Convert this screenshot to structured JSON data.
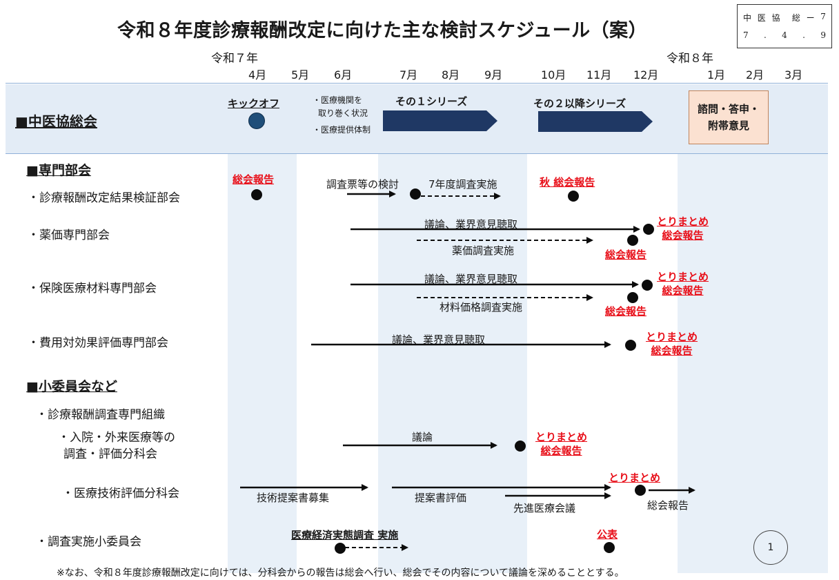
{
  "title": "令和８年度診療報酬改定に向けた主な検討スケジュール（案）",
  "doc_id": {
    "row1": [
      "中",
      "医",
      "協",
      "",
      "総",
      "ー",
      "7"
    ],
    "row2": [
      "7",
      ".",
      "4",
      ".",
      "9"
    ]
  },
  "timeline": {
    "era_start": "令和７年",
    "era_end": "令和８年",
    "months": [
      "4月",
      "5月",
      "6月",
      "7月",
      "8月",
      "9月",
      "10月",
      "11月",
      "12月",
      "1月",
      "2月",
      "3月"
    ]
  },
  "chuikyo": {
    "label": "■中医協総会",
    "kickoff": "キックオフ",
    "notes": [
      "・医療機関を",
      "取り巻く状況",
      "・医療提供体制"
    ],
    "series1": "その１シリーズ",
    "series2": "その２以降シリーズ",
    "final_box": [
      "諮問・答申・",
      "附帯意見"
    ]
  },
  "senmon": {
    "heading": "■専門部会",
    "kensho": {
      "label": "・診療報酬改定結果検証部会",
      "report1": "総会報告",
      "step1": "調査票等の検討",
      "step2": "7年度調査実施",
      "report2": "秋 総会報告"
    },
    "yakka": {
      "label": "・薬価専門部会",
      "main": "議論、業界意見聴取",
      "sub": "薬価調査実施",
      "summary": [
        "とりまとめ",
        "総会報告"
      ],
      "report": "総会報告"
    },
    "zairyo": {
      "label": "・保険医療材料専門部会",
      "main": "議論、業界意見聴取",
      "sub": "材料価格調査実施",
      "summary": [
        "とりまとめ",
        "総会報告"
      ],
      "report": "総会報告"
    },
    "hiyo": {
      "label": "・費用対効果評価専門部会",
      "main": "議論、業界意見聴取",
      "summary": [
        "とりまとめ",
        "総会報告"
      ]
    }
  },
  "shoiinkai": {
    "heading": "■小委員会など",
    "org": "・診療報酬調査専門組織",
    "nyuin": {
      "label": [
        "・入院・外来医療等の",
        "調査・評価分科会"
      ],
      "main": "議論",
      "summary": [
        "とりまとめ",
        "総会報告"
      ]
    },
    "gijutsu": {
      "label": "・医療技術評価分科会",
      "step1": "技術提案書募集",
      "step2": "提案書評価",
      "step3": "先進医療会議",
      "summary": "とりまとめ",
      "report": "総会報告"
    },
    "chosa": {
      "label": "・調査実施小委員会",
      "survey": "医療経済実態調査 実施",
      "publish": "公表"
    }
  },
  "page_number": "1",
  "footnote": "※なお、令和８年度診療報酬改定に向けては、分科会からの報告は総会へ行い、総会でその内容について議論を深めることとする。",
  "colors": {
    "band": "#e8f0f8",
    "arrow_dark": "#1f3864",
    "red": "#e8101a",
    "final_box": "#fbe1d1",
    "kickoff_dot": "#1f4e79"
  }
}
